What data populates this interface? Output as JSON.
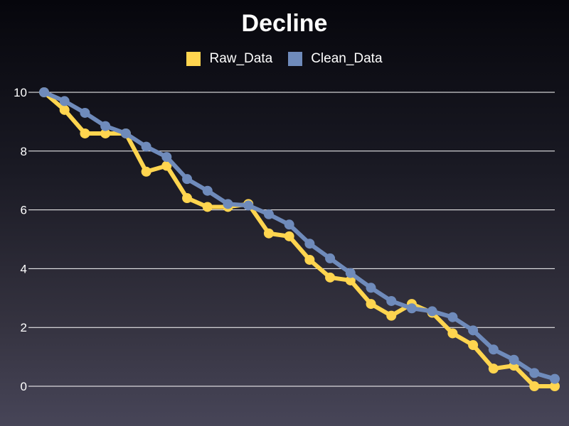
{
  "chart_data": {
    "type": "line",
    "title": "Decline",
    "xlabel": "",
    "ylabel": "",
    "ylim": [
      0,
      10
    ],
    "yticks": [
      0,
      2,
      4,
      6,
      8,
      10
    ],
    "x": [
      0,
      1,
      2,
      3,
      4,
      5,
      6,
      7,
      8,
      9,
      10,
      11,
      12,
      13,
      14,
      15,
      16,
      17,
      18,
      19,
      20,
      21,
      22,
      23,
      24,
      25
    ],
    "grid": true,
    "legend_position": "top-center",
    "series": [
      {
        "name": "Raw_Data",
        "color": "#ffd54f",
        "values": [
          10,
          9.4,
          8.6,
          8.6,
          8.6,
          7.3,
          7.5,
          6.4,
          6.1,
          6.1,
          6.2,
          5.2,
          5.1,
          4.3,
          3.7,
          3.6,
          2.8,
          2.4,
          2.8,
          2.5,
          1.8,
          1.4,
          0.6,
          0.7,
          0.0,
          0.0
        ]
      },
      {
        "name": "Clean_Data",
        "color": "#6f8bbb",
        "values": [
          10,
          9.7,
          9.3,
          8.85,
          8.6,
          8.15,
          7.8,
          7.05,
          6.65,
          6.2,
          6.15,
          5.85,
          5.5,
          4.85,
          4.35,
          3.85,
          3.35,
          2.9,
          2.65,
          2.55,
          2.35,
          1.9,
          1.25,
          0.9,
          0.45,
          0.25
        ]
      }
    ]
  }
}
